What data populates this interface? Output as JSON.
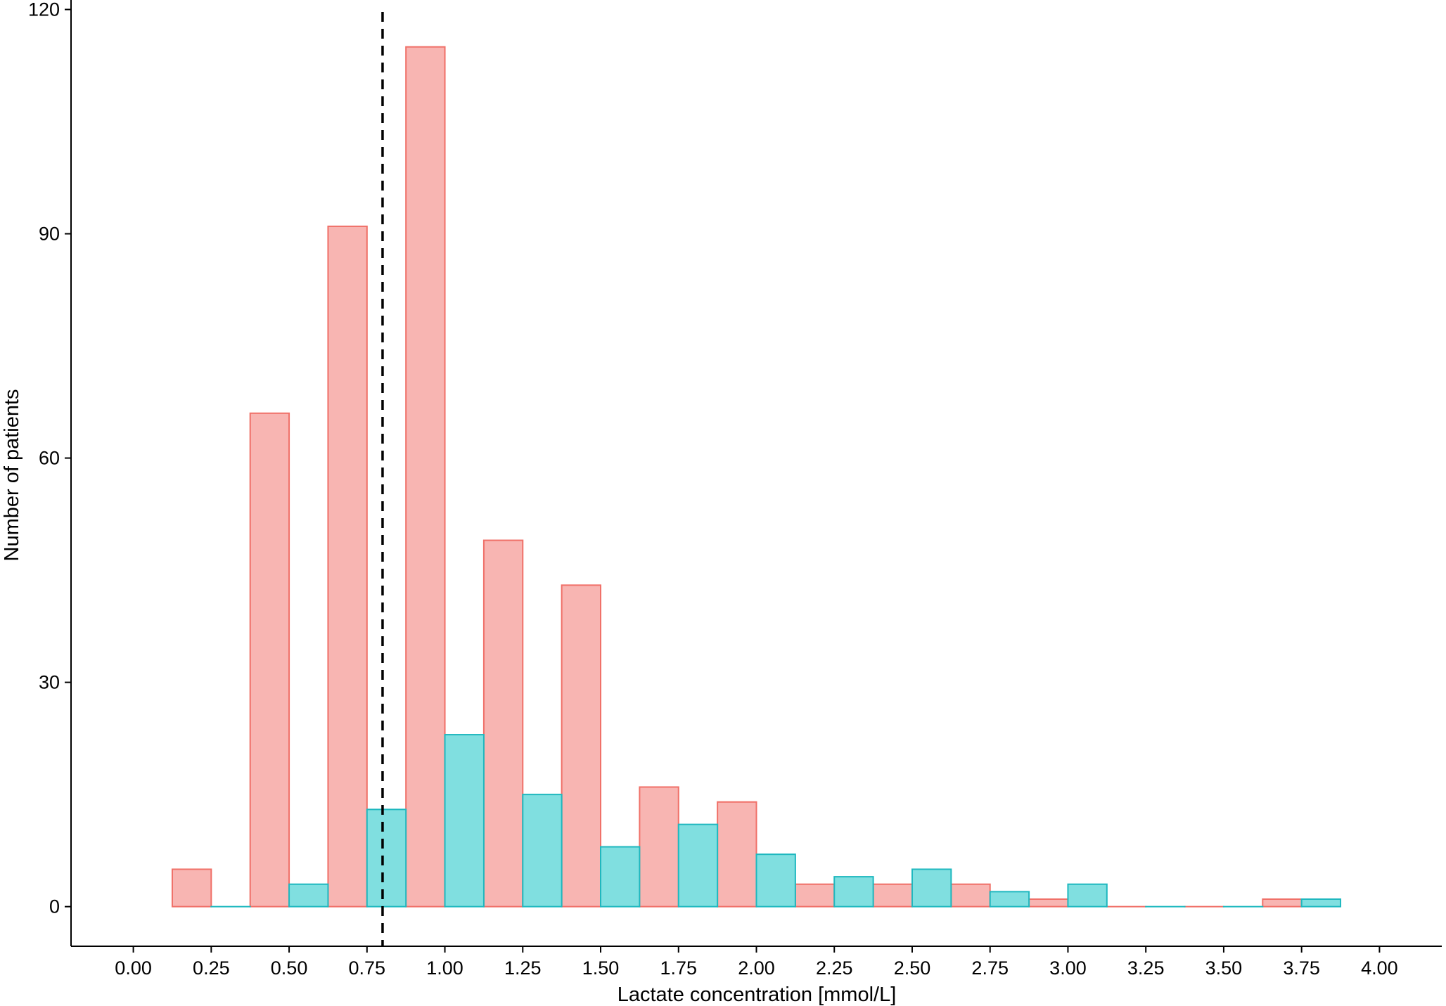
{
  "chart_data": {
    "type": "bar",
    "title": "",
    "xlabel": "Lactate concentration [mmol/L]",
    "ylabel": "Number of patients",
    "xlim": [
      -0.2,
      4.2
    ],
    "ylim": [
      -5.3,
      120.8
    ],
    "x_ticks": [
      0.0,
      0.25,
      0.5,
      0.75,
      1.0,
      1.25,
      1.5,
      1.75,
      2.0,
      2.25,
      2.5,
      2.75,
      3.0,
      3.25,
      3.5,
      3.75,
      4.0
    ],
    "x_tick_labels": [
      "0.00",
      "0.25",
      "0.50",
      "0.75",
      "1.00",
      "1.25",
      "1.50",
      "1.75",
      "2.00",
      "2.25",
      "2.50",
      "2.75",
      "3.00",
      "3.25",
      "3.50",
      "3.75",
      "4.00"
    ],
    "y_ticks": [
      0,
      30,
      60,
      90,
      120
    ],
    "y_tick_labels": [
      "0",
      "30",
      "60",
      "90",
      "120"
    ],
    "grid": false,
    "legend": "none",
    "bin_width": 0.25,
    "reference_line": {
      "x": 0.8,
      "style": "dashed",
      "color": "#000000"
    },
    "series": [
      {
        "fill": "#F8B5B2",
        "stroke": "#F07068",
        "values": [
          {
            "x": 0.1875,
            "y": 5
          },
          {
            "x": 0.4375,
            "y": 66
          },
          {
            "x": 0.6875,
            "y": 91
          },
          {
            "x": 0.9375,
            "y": 115
          },
          {
            "x": 1.1875,
            "y": 49
          },
          {
            "x": 1.4375,
            "y": 43
          },
          {
            "x": 1.6875,
            "y": 16
          },
          {
            "x": 1.9375,
            "y": 14
          },
          {
            "x": 2.1875,
            "y": 3
          },
          {
            "x": 2.4375,
            "y": 3
          },
          {
            "x": 2.6875,
            "y": 3
          },
          {
            "x": 2.9375,
            "y": 1
          },
          {
            "x": 3.1875,
            "y": 0
          },
          {
            "x": 3.4375,
            "y": 0
          },
          {
            "x": 3.6875,
            "y": 1
          }
        ]
      },
      {
        "fill": "#80DFE0",
        "stroke": "#1FB8BF",
        "values": [
          {
            "x": 0.3125,
            "y": 0
          },
          {
            "x": 0.5625,
            "y": 3
          },
          {
            "x": 0.8125,
            "y": 13
          },
          {
            "x": 1.0625,
            "y": 23
          },
          {
            "x": 1.3125,
            "y": 15
          },
          {
            "x": 1.5625,
            "y": 8
          },
          {
            "x": 1.8125,
            "y": 11
          },
          {
            "x": 2.0625,
            "y": 7
          },
          {
            "x": 2.3125,
            "y": 4
          },
          {
            "x": 2.5625,
            "y": 5
          },
          {
            "x": 2.8125,
            "y": 2
          },
          {
            "x": 3.0625,
            "y": 3
          },
          {
            "x": 3.3125,
            "y": 0
          },
          {
            "x": 3.5625,
            "y": 0
          },
          {
            "x": 3.8125,
            "y": 1
          }
        ]
      }
    ]
  }
}
